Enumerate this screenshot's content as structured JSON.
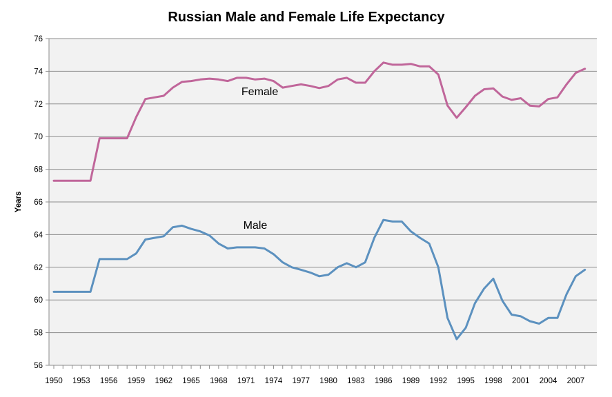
{
  "chart_data": {
    "type": "line",
    "title": "Russian Male and Female Life Expectancy",
    "xlabel": "",
    "ylabel": "Years",
    "ylim": [
      56,
      76
    ],
    "yticks": [
      56,
      58,
      60,
      62,
      64,
      66,
      68,
      70,
      72,
      74,
      76
    ],
    "xlim": [
      1950,
      2008
    ],
    "xticks": [
      1950,
      1953,
      1956,
      1959,
      1962,
      1965,
      1968,
      1971,
      1974,
      1977,
      1980,
      1983,
      1986,
      1989,
      1992,
      1995,
      1998,
      2001,
      2004,
      2007
    ],
    "grid": "horizontal",
    "x": [
      1950,
      1951,
      1952,
      1953,
      1954,
      1955,
      1956,
      1957,
      1958,
      1959,
      1960,
      1961,
      1962,
      1963,
      1964,
      1965,
      1966,
      1967,
      1968,
      1969,
      1970,
      1971,
      1972,
      1973,
      1974,
      1975,
      1976,
      1977,
      1978,
      1979,
      1980,
      1981,
      1982,
      1983,
      1984,
      1985,
      1986,
      1987,
      1988,
      1989,
      1990,
      1991,
      1992,
      1993,
      1994,
      1995,
      1996,
      1997,
      1998,
      1999,
      2000,
      2001,
      2002,
      2003,
      2004,
      2005,
      2006,
      2007,
      2008
    ],
    "series": [
      {
        "name": "Female",
        "color": "#c0669a",
        "values": [
          67.3,
          67.3,
          67.3,
          67.3,
          67.3,
          69.9,
          69.9,
          69.9,
          69.9,
          71.2,
          72.3,
          72.4,
          72.5,
          73.0,
          73.35,
          73.4,
          73.5,
          73.55,
          73.5,
          73.4,
          73.6,
          73.6,
          73.5,
          73.55,
          73.4,
          73.0,
          73.1,
          73.2,
          73.1,
          72.97,
          73.1,
          73.5,
          73.6,
          73.3,
          73.3,
          74.0,
          74.53,
          74.4,
          74.4,
          74.45,
          74.3,
          74.3,
          73.8,
          71.9,
          71.15,
          71.8,
          72.5,
          72.9,
          72.95,
          72.45,
          72.25,
          72.35,
          71.9,
          71.85,
          72.3,
          72.4,
          73.2,
          73.9,
          74.15
        ]
      },
      {
        "name": "Male",
        "color": "#5c91bf",
        "values": [
          60.5,
          60.5,
          60.5,
          60.5,
          60.5,
          62.5,
          62.5,
          62.5,
          62.5,
          62.85,
          63.7,
          63.8,
          63.9,
          64.45,
          64.55,
          64.35,
          64.2,
          63.95,
          63.45,
          63.15,
          63.22,
          63.22,
          63.22,
          63.15,
          62.8,
          62.3,
          62.0,
          61.85,
          61.68,
          61.45,
          61.55,
          62.0,
          62.25,
          62.0,
          62.3,
          63.8,
          64.9,
          64.8,
          64.8,
          64.2,
          63.8,
          63.45,
          62.0,
          58.9,
          57.6,
          58.3,
          59.8,
          60.7,
          61.3,
          59.95,
          59.1,
          59.0,
          58.7,
          58.55,
          58.9,
          58.9,
          60.35,
          61.45,
          61.85
        ]
      }
    ],
    "annotations": [
      {
        "text": "Female",
        "x": 1972.5,
        "y": 72.55
      },
      {
        "text": "Male",
        "x": 1972.0,
        "y": 64.35
      }
    ]
  }
}
